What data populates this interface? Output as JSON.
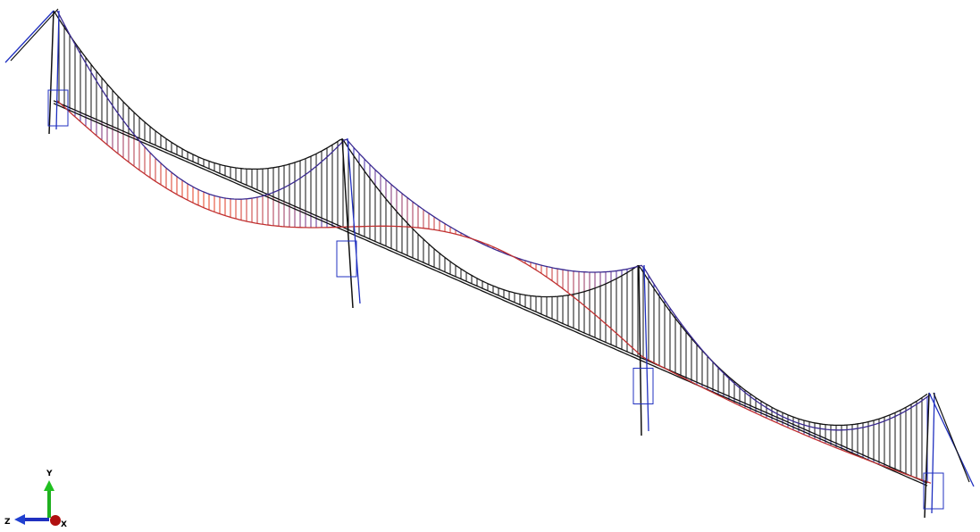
{
  "triad": {
    "y_label": "Y",
    "z_label": "Z",
    "x_label": "X"
  }
}
